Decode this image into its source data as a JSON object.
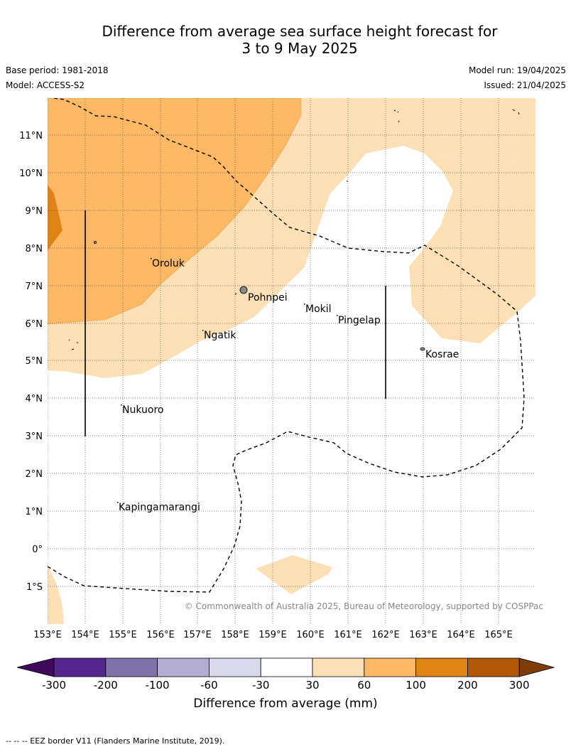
{
  "title": {
    "line1": "Difference from average sea surface height forecast for",
    "line2": "3 to 9 May 2025"
  },
  "meta": {
    "base_period": "Base period: 1981-2018",
    "model": "Model: ACCESS-S2",
    "model_run": "Model run: 19/04/2025",
    "issued": "Issued: 21/04/2025"
  },
  "map": {
    "lon_labels": [
      "153°E",
      "154°E",
      "155°E",
      "156°E",
      "157°E",
      "158°E",
      "159°E",
      "160°E",
      "161°E",
      "162°E",
      "163°E",
      "164°E",
      "165°E"
    ],
    "lat_labels": [
      "11°N",
      "10°N",
      "9°N",
      "8°N",
      "7°N",
      "6°N",
      "5°N",
      "4°N",
      "3°N",
      "2°N",
      "1°N",
      "0°",
      "1°S"
    ],
    "places": {
      "oroluk": "Oroluk",
      "pohnpei": "Pohnpei",
      "mokil": "Mokil",
      "pingelap": "Pingelap",
      "ngatik": "Ngatik",
      "kosrae": "Kosrae",
      "nukuoro": "Nukuoro",
      "kapingamarangi": "Kapingamarangi"
    },
    "copyright": "© Commonwealth of Australia 2025, Bureau of Meteorology, supported by COSPPac"
  },
  "colorbar": {
    "ticks": [
      "-300",
      "-200",
      "-100",
      "-60",
      "-30",
      "30",
      "60",
      "100",
      "200",
      "300"
    ],
    "label": "Difference from average (mm)",
    "colors": [
      "#3f0a5a",
      "#54278f",
      "#8073ac",
      "#b2abd2",
      "#d8daeb",
      "#ffffff",
      "#fee0b6",
      "#fdb863",
      "#e08214",
      "#b35806",
      "#7f3b08"
    ]
  },
  "footer": "--  --  -- EEZ border V11 (Flanders Marine Institute, 2019)."
}
